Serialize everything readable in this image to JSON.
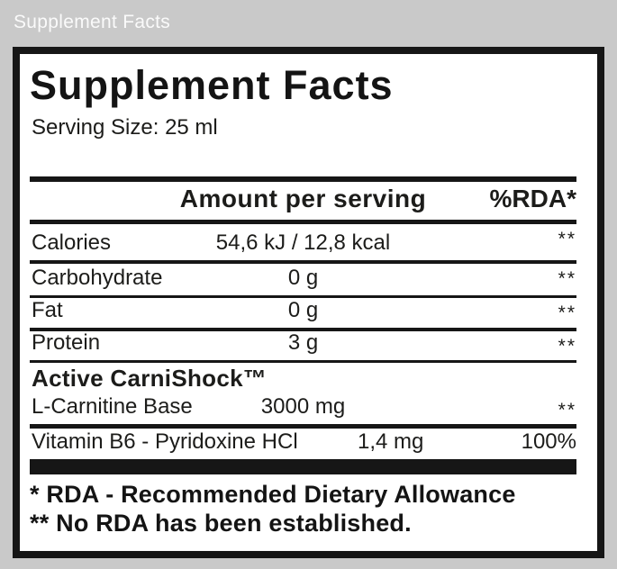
{
  "window": {
    "caption": "Supplement Facts"
  },
  "label": {
    "title": "Supplement Facts",
    "serving_size": "Serving Size: 25 ml",
    "columns": {
      "amount": "Amount per serving",
      "rda": "%RDA*"
    },
    "rows": [
      {
        "name": "Calories",
        "amount": "54,6 kJ / 12,8 kcal",
        "rda": "**"
      },
      {
        "name": "Carbohydrate",
        "amount": "0 g",
        "rda": "**"
      },
      {
        "name": "Fat",
        "amount": "0 g",
        "rda": "**"
      },
      {
        "name": "Protein",
        "amount": "3 g",
        "rda": "**"
      }
    ],
    "section": {
      "heading": "Active CarniShock™",
      "rows": [
        {
          "name": "L-Carnitine Base",
          "amount": "3000 mg",
          "rda": "**"
        },
        {
          "name": "Vitamin B6 - Pyridoxine HCl",
          "amount": "1,4 mg",
          "rda": "100%"
        }
      ]
    },
    "footnotes": [
      "* RDA - Recommended Dietary Allowance",
      "** No RDA has been established."
    ]
  },
  "colors": {
    "background": "#c9c9c9",
    "panel": "#ffffff",
    "ink": "#161616",
    "caption_text": "#fafafa"
  }
}
